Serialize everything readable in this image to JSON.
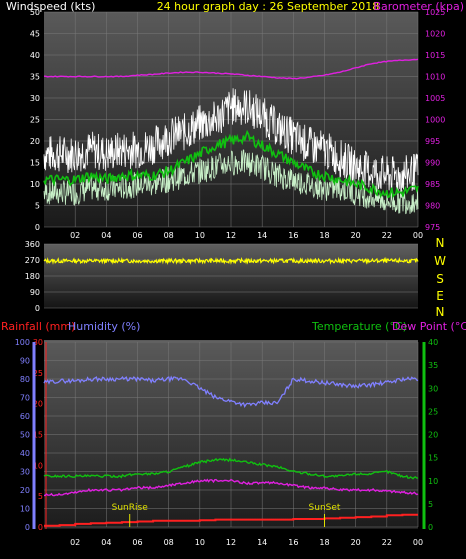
{
  "colors": {
    "background": "#000000",
    "wind_label": "#ffffff",
    "title": "#ffff00",
    "barometer": "#e020e0",
    "gust": "#ffffff",
    "speed": "#c8f0c8",
    "avg": "#10c010",
    "direction": "#ffff00",
    "rainfall": "#ff2020",
    "humidity": "#8080ff",
    "temperature": "#10c010",
    "dewpoint": "#e020e0",
    "sun": "#e0e000"
  },
  "chart_data": [
    {
      "type": "line",
      "title": "24 hour graph day : 26 September 2018",
      "series": [
        {
          "name": "Windspeed (kts)",
          "axis": "left"
        },
        {
          "name": "Barometer (kpa)",
          "axis": "right"
        }
      ],
      "x_ticks": [
        "02",
        "04",
        "06",
        "08",
        "10",
        "12",
        "14",
        "16",
        "18",
        "20",
        "22",
        "00"
      ],
      "left_axis": {
        "label": "Windspeed (kts)",
        "ylim": [
          0,
          50
        ],
        "ticks": [
          0,
          5,
          10,
          15,
          20,
          25,
          30,
          35,
          40,
          45,
          50
        ]
      },
      "right_axis": {
        "label": "Barometer (kpa)",
        "ylim": [
          975,
          1025
        ],
        "ticks": [
          975,
          980,
          985,
          990,
          995,
          1000,
          1005,
          1010,
          1015,
          1020,
          1025
        ]
      },
      "x": [
        0,
        1,
        2,
        3,
        4,
        5,
        6,
        7,
        8,
        9,
        10,
        11,
        12,
        13,
        14,
        15,
        16,
        17,
        18,
        19,
        20,
        21,
        22,
        23,
        24
      ],
      "gust": [
        17,
        17,
        17,
        18,
        17,
        18,
        18,
        19,
        21,
        22,
        24,
        25,
        28,
        28,
        26,
        23,
        21,
        19,
        18,
        16,
        14,
        13,
        12,
        12,
        13
      ],
      "speed": [
        8,
        8,
        8,
        9,
        9,
        9,
        10,
        10,
        11,
        12,
        13,
        14,
        15,
        15,
        14,
        12,
        11,
        10,
        9,
        9,
        8,
        7,
        6,
        6,
        6
      ],
      "avg": [
        11,
        11,
        11,
        12,
        11,
        12,
        12,
        12,
        13,
        15,
        17,
        19,
        20,
        21,
        19,
        17,
        15,
        13,
        12,
        11,
        10,
        9,
        8,
        8,
        9
      ],
      "barometer": [
        1010,
        1010,
        1010,
        1010,
        1010,
        1010,
        1010.3,
        1010.5,
        1010.8,
        1011,
        1011,
        1010.8,
        1010.6,
        1010.3,
        1010,
        1009.7,
        1009.5,
        1009.8,
        1010.3,
        1011,
        1012,
        1013,
        1013.5,
        1013.8,
        1014
      ]
    },
    {
      "type": "line",
      "series": [
        {
          "name": "Wind direction"
        }
      ],
      "x_ticks": [],
      "left_axis": {
        "label": "",
        "ylim": [
          0,
          360
        ],
        "ticks": [
          0,
          90,
          180,
          270,
          360
        ]
      },
      "compass_labels": [
        "N",
        "W",
        "S",
        "E",
        "N"
      ],
      "x": [
        0,
        24
      ],
      "values": [
        265,
        265
      ]
    },
    {
      "type": "line",
      "series": [
        {
          "name": "Rainfall (mm)",
          "axis": "left-outer"
        },
        {
          "name": "Humidity (%)",
          "axis": "left"
        },
        {
          "name": "Temperature (°C)",
          "axis": "right"
        },
        {
          "name": "Dew Point (°C)",
          "axis": "right"
        }
      ],
      "x_ticks": [
        "02",
        "04",
        "06",
        "08",
        "10",
        "12",
        "14",
        "16",
        "18",
        "20",
        "22",
        "00"
      ],
      "rain_axis": {
        "label": "Rainfall (mm)",
        "ylim": [
          0,
          30
        ],
        "ticks": [
          0,
          5,
          10,
          15,
          20,
          25,
          30
        ]
      },
      "humidity_axis": {
        "label": "Humidity (%)",
        "ylim": [
          0,
          100
        ],
        "ticks": [
          0,
          10,
          20,
          30,
          40,
          50,
          60,
          70,
          80,
          90,
          100
        ]
      },
      "temp_axis": {
        "label": "Temperature (°C)",
        "ylim": [
          0,
          40
        ],
        "ticks": [
          0,
          5,
          10,
          15,
          20,
          25,
          30,
          35,
          40
        ]
      },
      "x": [
        0,
        1,
        2,
        3,
        4,
        5,
        6,
        7,
        8,
        9,
        10,
        11,
        12,
        13,
        14,
        15,
        16,
        17,
        18,
        19,
        20,
        21,
        22,
        23,
        24
      ],
      "humidity": [
        78,
        79,
        79,
        80,
        80,
        80,
        80,
        79,
        80,
        80,
        75,
        70,
        68,
        66,
        67,
        67,
        80,
        79,
        78,
        77,
        76,
        77,
        78,
        80,
        80
      ],
      "temperature": [
        11,
        11,
        11,
        11,
        11,
        11,
        11.5,
        11.5,
        12,
        13,
        14,
        14.5,
        14.5,
        14,
        13.5,
        13,
        12,
        11.5,
        11,
        11,
        11.5,
        11.5,
        12,
        11,
        10.5
      ],
      "dewpoint": [
        7,
        7,
        7.5,
        8,
        8,
        8,
        8.5,
        8.5,
        9,
        9.5,
        10,
        10,
        10,
        9.5,
        9.5,
        9.5,
        9,
        8.5,
        8.5,
        8,
        8,
        8,
        7.8,
        7.5,
        7.2
      ],
      "rainfall": [
        0.2,
        0.3,
        0.5,
        0.6,
        0.7,
        0.8,
        0.9,
        1.0,
        1.0,
        1.0,
        1.1,
        1.2,
        1.2,
        1.2,
        1.2,
        1.2,
        1.3,
        1.3,
        1.4,
        1.5,
        1.6,
        1.7,
        1.9,
        2.0,
        2.0
      ],
      "annotations": [
        {
          "text": "SunRise",
          "x": 5.5
        },
        {
          "text": "SunSet",
          "x": 18
        }
      ]
    }
  ]
}
